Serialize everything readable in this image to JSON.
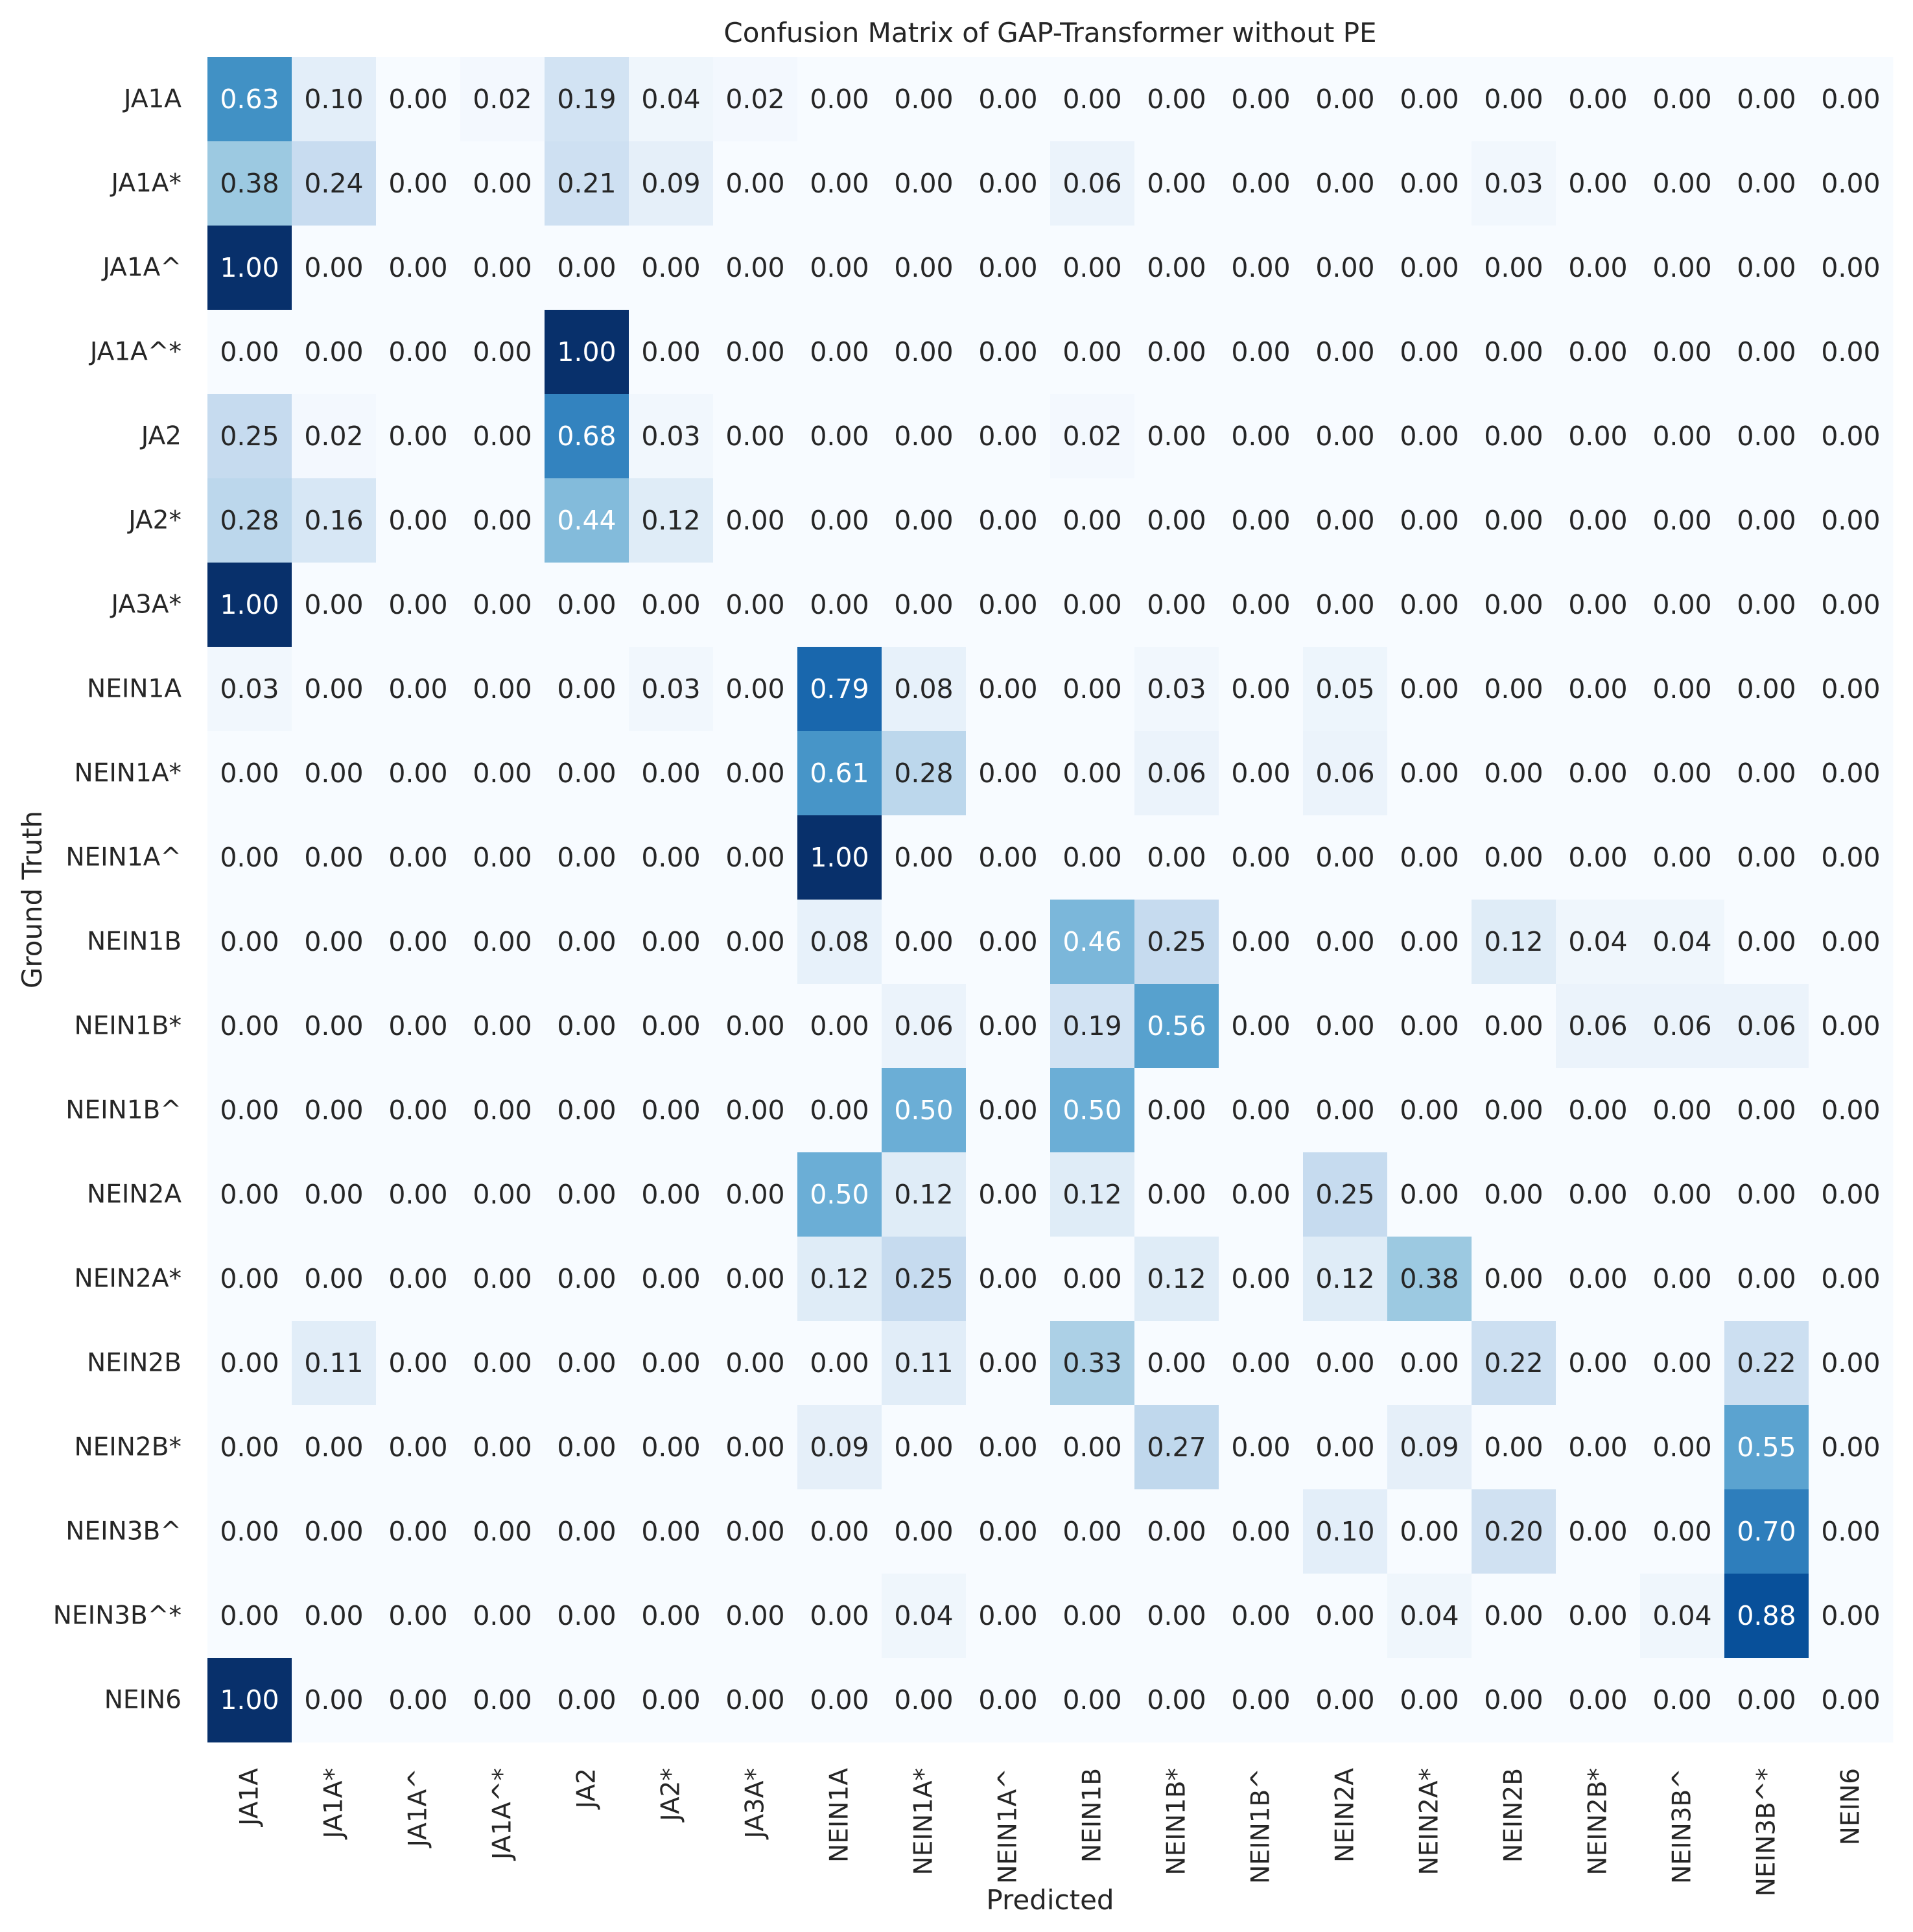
{
  "chart_data": {
    "type": "heatmap",
    "title": "Confusion Matrix of GAP-Transformer without PE",
    "xlabel": "Predicted",
    "ylabel": "Ground Truth",
    "colormap": "Blues",
    "value_range": [
      0,
      1
    ],
    "value_format": "0.00",
    "colorbar": false,
    "grid": false,
    "colors": {
      "low": "#f7fbff",
      "high": "#08306b",
      "text_dark": "#262626",
      "text_light": "#ffffff",
      "background": "#ffffff"
    },
    "x_categories": [
      "JA1A",
      "JA1A*",
      "JA1A^",
      "JA1A^*",
      "JA2",
      "JA2*",
      "JA3A*",
      "NEIN1A",
      "NEIN1A*",
      "NEIN1A^",
      "NEIN1B",
      "NEIN1B*",
      "NEIN1B^",
      "NEIN2A",
      "NEIN2A*",
      "NEIN2B",
      "NEIN2B*",
      "NEIN3B^",
      "NEIN3B^*",
      "NEIN6"
    ],
    "y_categories": [
      "JA1A",
      "JA1A*",
      "JA1A^",
      "JA1A^*",
      "JA2",
      "JA2*",
      "JA3A*",
      "NEIN1A",
      "NEIN1A*",
      "NEIN1A^",
      "NEIN1B",
      "NEIN1B*",
      "NEIN1B^",
      "NEIN2A",
      "NEIN2A*",
      "NEIN2B",
      "NEIN2B*",
      "NEIN3B^",
      "NEIN3B^*",
      "NEIN6"
    ],
    "values": [
      [
        0.63,
        0.1,
        0.0,
        0.02,
        0.19,
        0.04,
        0.02,
        0.0,
        0.0,
        0.0,
        0.0,
        0.0,
        0.0,
        0.0,
        0.0,
        0.0,
        0.0,
        0.0,
        0.0,
        0.0
      ],
      [
        0.38,
        0.24,
        0.0,
        0.0,
        0.21,
        0.09,
        0.0,
        0.0,
        0.0,
        0.0,
        0.06,
        0.0,
        0.0,
        0.0,
        0.0,
        0.03,
        0.0,
        0.0,
        0.0,
        0.0
      ],
      [
        1.0,
        0.0,
        0.0,
        0.0,
        0.0,
        0.0,
        0.0,
        0.0,
        0.0,
        0.0,
        0.0,
        0.0,
        0.0,
        0.0,
        0.0,
        0.0,
        0.0,
        0.0,
        0.0,
        0.0
      ],
      [
        0.0,
        0.0,
        0.0,
        0.0,
        1.0,
        0.0,
        0.0,
        0.0,
        0.0,
        0.0,
        0.0,
        0.0,
        0.0,
        0.0,
        0.0,
        0.0,
        0.0,
        0.0,
        0.0,
        0.0
      ],
      [
        0.25,
        0.02,
        0.0,
        0.0,
        0.68,
        0.03,
        0.0,
        0.0,
        0.0,
        0.0,
        0.02,
        0.0,
        0.0,
        0.0,
        0.0,
        0.0,
        0.0,
        0.0,
        0.0,
        0.0
      ],
      [
        0.28,
        0.16,
        0.0,
        0.0,
        0.44,
        0.12,
        0.0,
        0.0,
        0.0,
        0.0,
        0.0,
        0.0,
        0.0,
        0.0,
        0.0,
        0.0,
        0.0,
        0.0,
        0.0,
        0.0
      ],
      [
        1.0,
        0.0,
        0.0,
        0.0,
        0.0,
        0.0,
        0.0,
        0.0,
        0.0,
        0.0,
        0.0,
        0.0,
        0.0,
        0.0,
        0.0,
        0.0,
        0.0,
        0.0,
        0.0,
        0.0
      ],
      [
        0.03,
        0.0,
        0.0,
        0.0,
        0.0,
        0.03,
        0.0,
        0.79,
        0.08,
        0.0,
        0.0,
        0.03,
        0.0,
        0.05,
        0.0,
        0.0,
        0.0,
        0.0,
        0.0,
        0.0
      ],
      [
        0.0,
        0.0,
        0.0,
        0.0,
        0.0,
        0.0,
        0.0,
        0.61,
        0.28,
        0.0,
        0.0,
        0.06,
        0.0,
        0.06,
        0.0,
        0.0,
        0.0,
        0.0,
        0.0,
        0.0
      ],
      [
        0.0,
        0.0,
        0.0,
        0.0,
        0.0,
        0.0,
        0.0,
        1.0,
        0.0,
        0.0,
        0.0,
        0.0,
        0.0,
        0.0,
        0.0,
        0.0,
        0.0,
        0.0,
        0.0,
        0.0
      ],
      [
        0.0,
        0.0,
        0.0,
        0.0,
        0.0,
        0.0,
        0.0,
        0.08,
        0.0,
        0.0,
        0.46,
        0.25,
        0.0,
        0.0,
        0.0,
        0.12,
        0.04,
        0.04,
        0.0,
        0.0
      ],
      [
        0.0,
        0.0,
        0.0,
        0.0,
        0.0,
        0.0,
        0.0,
        0.0,
        0.06,
        0.0,
        0.19,
        0.56,
        0.0,
        0.0,
        0.0,
        0.0,
        0.06,
        0.06,
        0.06,
        0.0
      ],
      [
        0.0,
        0.0,
        0.0,
        0.0,
        0.0,
        0.0,
        0.0,
        0.0,
        0.5,
        0.0,
        0.5,
        0.0,
        0.0,
        0.0,
        0.0,
        0.0,
        0.0,
        0.0,
        0.0,
        0.0
      ],
      [
        0.0,
        0.0,
        0.0,
        0.0,
        0.0,
        0.0,
        0.0,
        0.5,
        0.12,
        0.0,
        0.12,
        0.0,
        0.0,
        0.25,
        0.0,
        0.0,
        0.0,
        0.0,
        0.0,
        0.0
      ],
      [
        0.0,
        0.0,
        0.0,
        0.0,
        0.0,
        0.0,
        0.0,
        0.12,
        0.25,
        0.0,
        0.0,
        0.12,
        0.0,
        0.12,
        0.38,
        0.0,
        0.0,
        0.0,
        0.0,
        0.0
      ],
      [
        0.0,
        0.11,
        0.0,
        0.0,
        0.0,
        0.0,
        0.0,
        0.0,
        0.11,
        0.0,
        0.33,
        0.0,
        0.0,
        0.0,
        0.0,
        0.22,
        0.0,
        0.0,
        0.22,
        0.0
      ],
      [
        0.0,
        0.0,
        0.0,
        0.0,
        0.0,
        0.0,
        0.0,
        0.09,
        0.0,
        0.0,
        0.0,
        0.27,
        0.0,
        0.0,
        0.09,
        0.0,
        0.0,
        0.0,
        0.55,
        0.0
      ],
      [
        0.0,
        0.0,
        0.0,
        0.0,
        0.0,
        0.0,
        0.0,
        0.0,
        0.0,
        0.0,
        0.0,
        0.0,
        0.0,
        0.1,
        0.0,
        0.2,
        0.0,
        0.0,
        0.7,
        0.0
      ],
      [
        0.0,
        0.0,
        0.0,
        0.0,
        0.0,
        0.0,
        0.0,
        0.0,
        0.04,
        0.0,
        0.0,
        0.0,
        0.0,
        0.0,
        0.04,
        0.0,
        0.0,
        0.04,
        0.88,
        0.0
      ],
      [
        1.0,
        0.0,
        0.0,
        0.0,
        0.0,
        0.0,
        0.0,
        0.0,
        0.0,
        0.0,
        0.0,
        0.0,
        0.0,
        0.0,
        0.0,
        0.0,
        0.0,
        0.0,
        0.0,
        0.0
      ]
    ]
  }
}
